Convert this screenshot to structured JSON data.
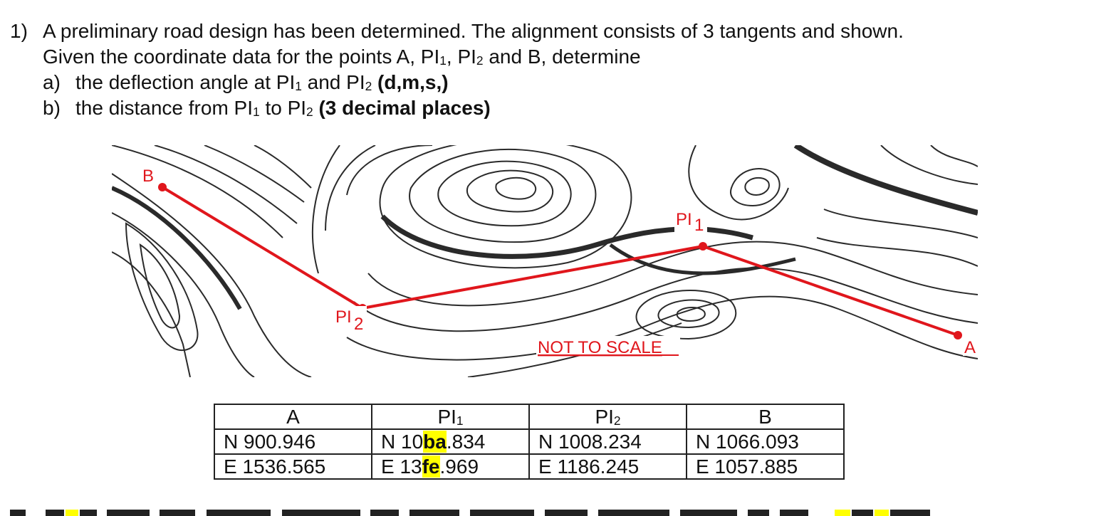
{
  "question": {
    "number": "1)",
    "line1": "A preliminary road design has been determined. The alignment consists of 3 tangents and shown.",
    "line2_pre": "Given the coordinate data for the points A, PI",
    "line2_s1": "1",
    "line2_mid": ", PI",
    "line2_s2": "2",
    "line2_post": " and B, determine",
    "a_letter": "a)",
    "a_text_pre": "the deflection angle at PI",
    "a_s1": "1",
    "a_mid": " and PI",
    "a_s2": "2",
    "a_bold": "(d,m,s,)",
    "b_letter": "b)",
    "b_text_pre": "the distance from PI",
    "b_s1": "1",
    "b_mid": " to PI",
    "b_s2": "2",
    "b_bold": "(3 decimal places)"
  },
  "figure": {
    "labels": {
      "B": "B",
      "A": "A",
      "PI1": "PI",
      "PI1_sub": "1",
      "PI2": "PI",
      "PI2_sub": "2",
      "not_to_scale": "NOT TO SCALE"
    },
    "colors": {
      "alignment": "#e0161c",
      "contour": "#2a2a2a"
    }
  },
  "table": {
    "headers": {
      "A": "A",
      "PI1": "PI",
      "PI1_sub": "1",
      "PI2": "PI",
      "PI2_sub": "2",
      "B": "B"
    },
    "north": {
      "A": "N 900.946",
      "PI1_pre": "N 10",
      "PI1_hl": "ba",
      "PI1_post": ".834",
      "PI2": "N 1008.234",
      "B": "N 1066.093"
    },
    "east": {
      "A": "E 1536.565",
      "PI1_pre": "E 13",
      "PI1_hl": "fe",
      "PI1_post": ".969",
      "PI2": "E 1186.245",
      "B": "E 1057.885"
    },
    "highlight_color": "#ffff00"
  }
}
